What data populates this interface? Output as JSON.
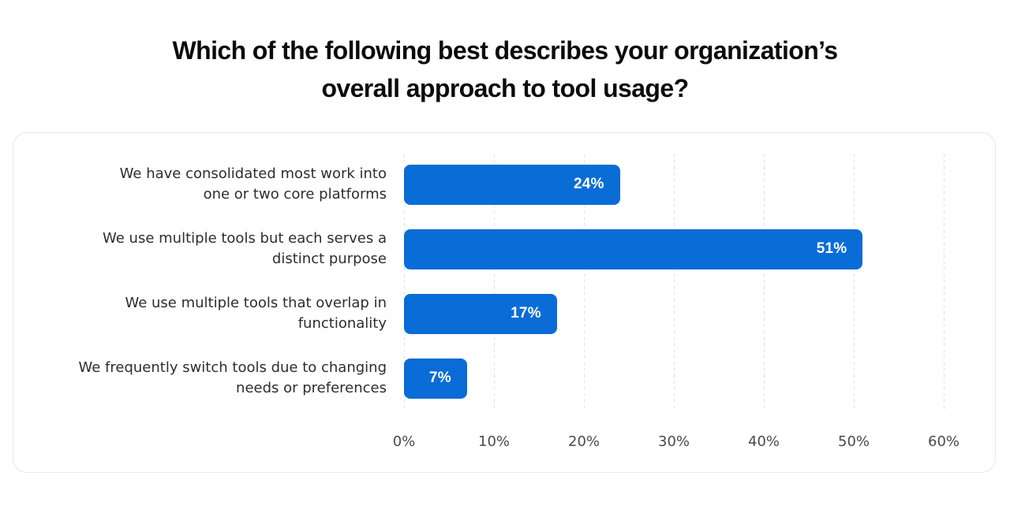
{
  "header": {
    "title_line1": "Which of the following best describes your organization’s",
    "title_line2": "overall approach to tool usage?"
  },
  "chart_data": {
    "type": "bar",
    "orientation": "horizontal",
    "title": "Which of the following best describes your organization’s overall approach to tool usage?",
    "categories": [
      "We have consolidated most work into one or two core platforms",
      "We use multiple tools but each serves a distinct purpose",
      "We use multiple tools that overlap in functionality",
      "We frequently switch tools due to changing needs or preferences"
    ],
    "label_lines": [
      [
        "We have consolidated most work into",
        "one or two core platforms"
      ],
      [
        "We use multiple tools but each serves a",
        "distinct purpose"
      ],
      [
        "We use multiple tools that overlap in",
        "functionality"
      ],
      [
        "We frequently switch tools due to changing",
        "needs or preferences"
      ]
    ],
    "values": [
      24,
      51,
      17,
      7
    ],
    "value_labels": [
      "24%",
      "51%",
      "17%",
      "7%"
    ],
    "xlabel": "",
    "ylabel": "",
    "xlim": [
      0,
      60
    ],
    "x_ticks": [
      0,
      10,
      20,
      30,
      40,
      50,
      60
    ],
    "x_tick_labels": [
      "0%",
      "10%",
      "20%",
      "30%",
      "40%",
      "50%",
      "60%"
    ],
    "grid": "vertical-dashed",
    "legend": "none",
    "colors": {
      "bar": "#0a6cd7",
      "bar_value_text": "#ffffff",
      "gridline": "#e2e2e2",
      "category_label": "#2d2d2d",
      "tick_label": "#4b4b4b",
      "title": "#0b0b0b",
      "card_border": "#e8e8e8",
      "background": "#ffffff"
    }
  }
}
